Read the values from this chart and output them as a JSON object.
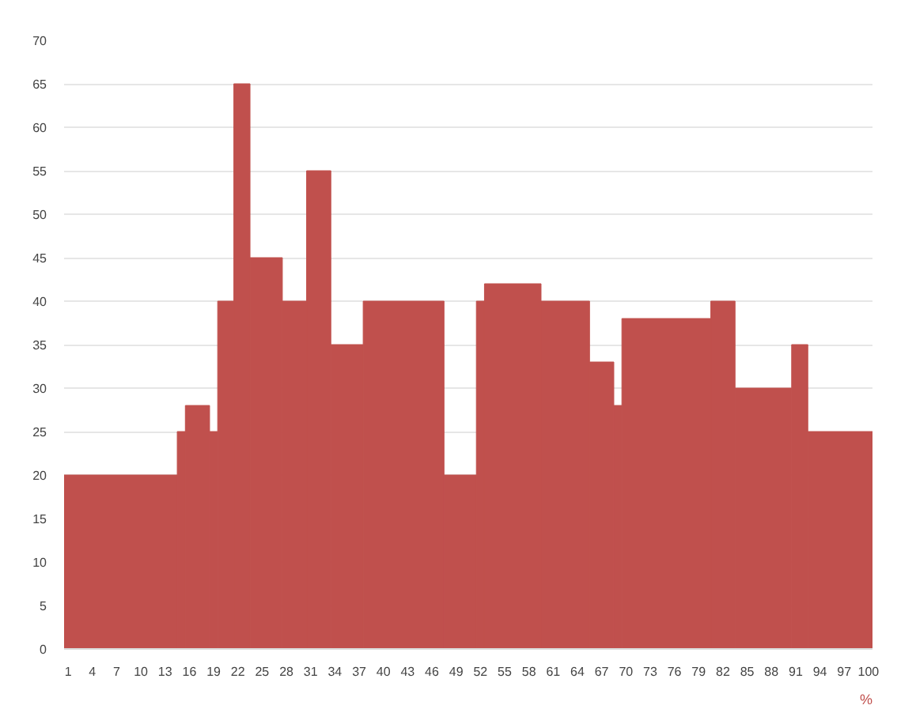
{
  "chart_data": {
    "type": "histogram",
    "xlabel": "%",
    "bins": [
      0.5,
      14.5,
      15.5,
      18.5,
      19.5,
      21.5,
      23.5,
      27.5,
      30.5,
      33.5,
      37.5,
      47.5,
      51.5,
      52.5,
      59.5,
      65.5,
      68.5,
      69.5,
      80.5,
      83.5,
      90.5,
      92.5,
      100.5
    ],
    "values": [
      20,
      25,
      28,
      25,
      40,
      65,
      45,
      40,
      55,
      35,
      40,
      20,
      40,
      42,
      40,
      33,
      28,
      38,
      40,
      30,
      35,
      25
    ],
    "color": "#c0504d",
    "xlim": [
      0.5,
      100.5
    ],
    "xticks": [
      1,
      4,
      7,
      10,
      13,
      16,
      19,
      22,
      25,
      28,
      31,
      34,
      37,
      40,
      43,
      46,
      49,
      52,
      55,
      58,
      61,
      64,
      67,
      70,
      73,
      76,
      79,
      82,
      85,
      88,
      91,
      94,
      97,
      100
    ],
    "ylim": [
      0,
      70
    ],
    "yticks": [
      0,
      5,
      10,
      15,
      20,
      25,
      30,
      35,
      40,
      45,
      50,
      55,
      60,
      65,
      70
    ],
    "grid": "y"
  }
}
